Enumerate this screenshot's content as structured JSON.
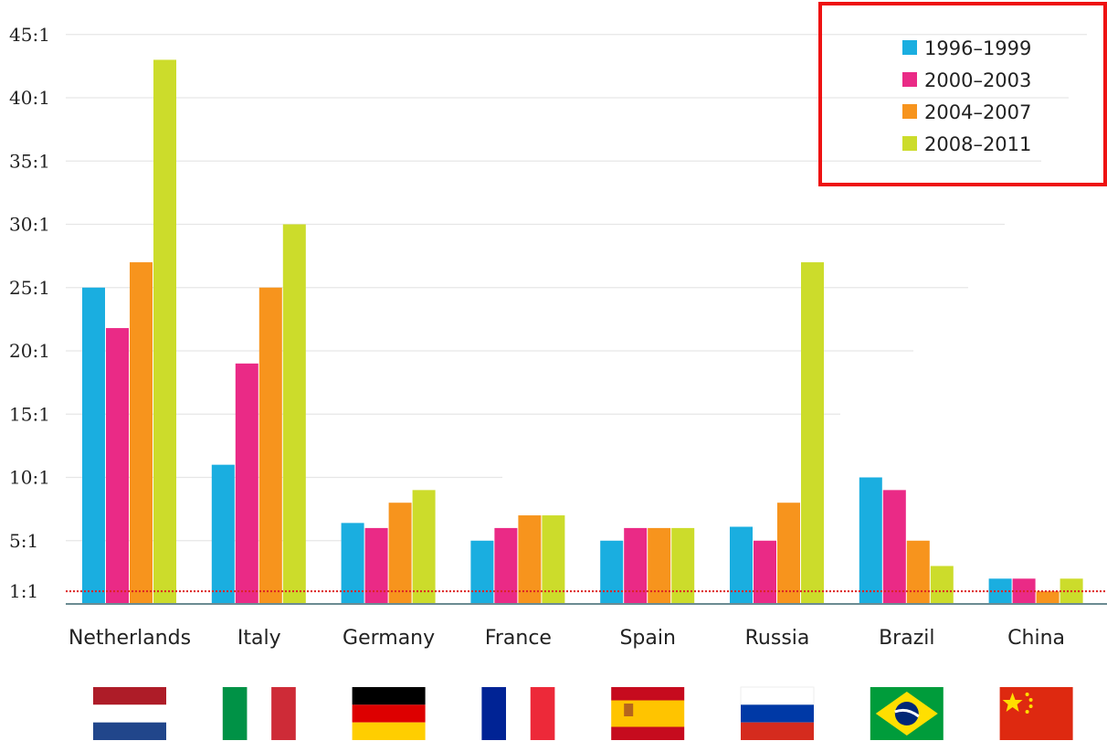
{
  "chart_data": {
    "type": "bar",
    "categories": [
      "Netherlands",
      "Italy",
      "Germany",
      "France",
      "Spain",
      "Russia",
      "Brazil",
      "China"
    ],
    "flag_icons": [
      "netherlands-flag-icon",
      "italy-flag-icon",
      "germany-flag-icon",
      "france-flag-icon",
      "spain-flag-icon",
      "russia-flag-icon",
      "brazil-flag-icon",
      "china-flag-icon"
    ],
    "series": [
      {
        "name": "1996–1999",
        "color": "#1aaee0",
        "values": [
          25,
          11,
          6.4,
          5,
          5,
          6.1,
          10,
          2
        ]
      },
      {
        "name": "2000–2003",
        "color": "#ea2a86",
        "values": [
          21.8,
          19,
          6,
          6,
          6,
          5,
          9,
          2
        ]
      },
      {
        "name": "2004–2007",
        "color": "#f7941d",
        "values": [
          27,
          25,
          8,
          7,
          6,
          8,
          5,
          1
        ]
      },
      {
        "name": "2008–2011",
        "color": "#ccdc2b",
        "values": [
          43,
          30,
          9,
          7,
          6,
          27,
          3,
          2
        ]
      }
    ],
    "yticks": [
      1,
      5,
      10,
      15,
      20,
      25,
      30,
      35,
      40,
      45
    ],
    "ytick_labels": [
      "1:1",
      "5:1",
      "10:1",
      "15:1",
      "20:1",
      "25:1",
      "30:1",
      "35:1",
      "40:1",
      "45:1"
    ],
    "ylim": [
      0,
      45
    ],
    "reference_line": {
      "value": 1,
      "color": "#dd2222",
      "style": "dotted"
    },
    "legend_placement": "top-right",
    "legend_highlight_color": "#ee1111",
    "grid": true,
    "title": "",
    "xlabel": "",
    "ylabel": ""
  }
}
